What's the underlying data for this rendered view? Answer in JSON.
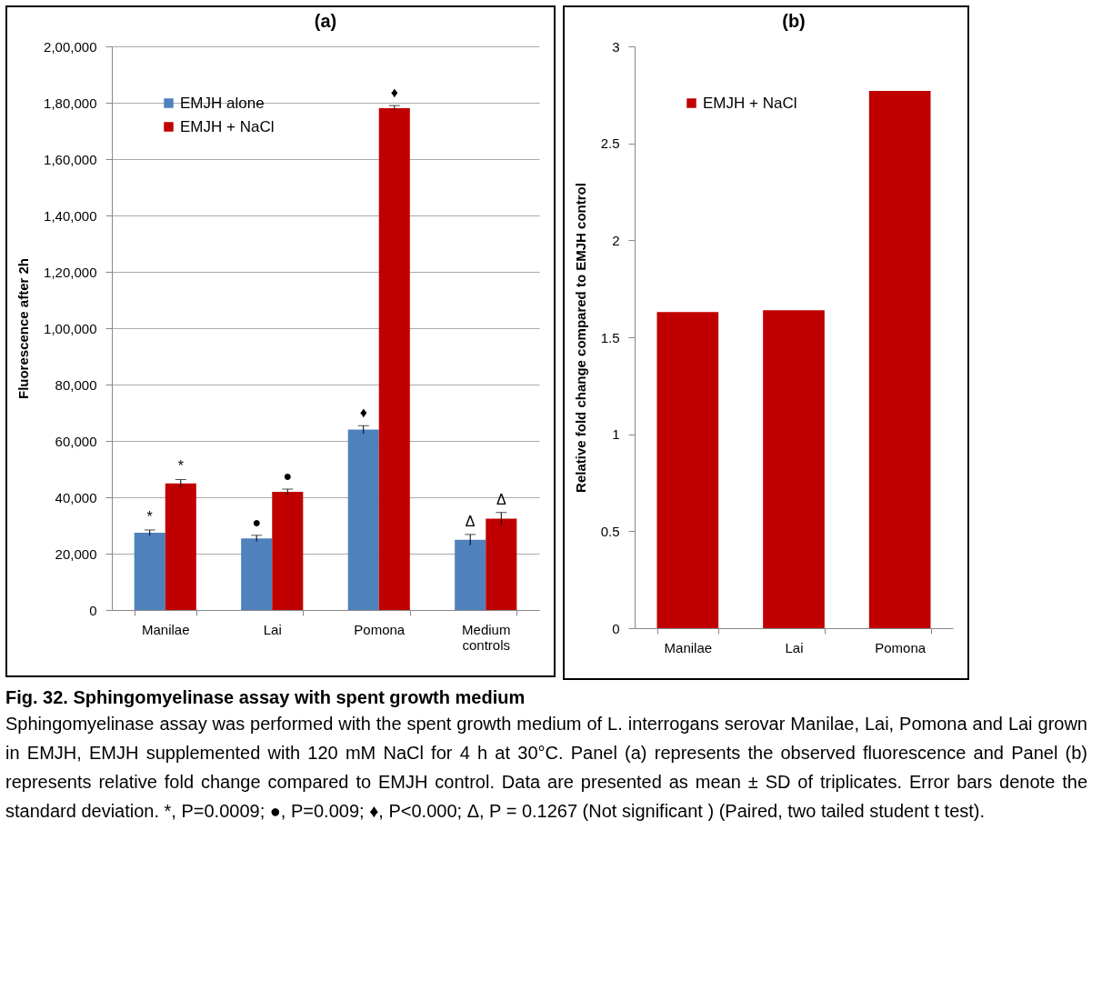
{
  "chart_data": [
    {
      "type": "bar",
      "title": "(a)",
      "ylabel": "Fluorescence  after 2h",
      "categories": [
        "Manilae",
        "Lai",
        "Pomona",
        "Medium controls"
      ],
      "series": [
        {
          "name": "EMJH alone",
          "color": "#4f81bd",
          "values": [
            27400,
            25400,
            64000,
            24900
          ],
          "errors": [
            1000,
            1100,
            1400,
            1900
          ]
        },
        {
          "name": "EMJH + NaCl",
          "color": "#c00000",
          "values": [
            44900,
            41900,
            178100,
            32400
          ],
          "errors": [
            1400,
            1000,
            900,
            2200
          ]
        }
      ],
      "ylim": [
        0,
        200000
      ],
      "yticks": [
        {
          "value": 0,
          "label": "0"
        },
        {
          "value": 20000,
          "label": "20,000"
        },
        {
          "value": 40000,
          "label": "40,000"
        },
        {
          "value": 60000,
          "label": "60,000"
        },
        {
          "value": 80000,
          "label": "80,000"
        },
        {
          "value": 100000,
          "label": "1,00,000"
        },
        {
          "value": 120000,
          "label": "1,20,000"
        },
        {
          "value": 140000,
          "label": "1,40,000"
        },
        {
          "value": 160000,
          "label": "1,60,000"
        },
        {
          "value": 180000,
          "label": "1,80,000"
        },
        {
          "value": 200000,
          "label": "2,00,000"
        }
      ],
      "grid": "y",
      "legend": "top left",
      "annotations": [
        {
          "text": "*",
          "x": "Manilae",
          "y": 27400
        },
        {
          "text": "*",
          "x": "Manilae",
          "y": 44900
        },
        {
          "text": "●",
          "x": "Lai",
          "y": 25400
        },
        {
          "text": "●",
          "x": "Lai",
          "y": 41900
        },
        {
          "text": "♦",
          "x": "Pomona",
          "y": 64000
        },
        {
          "text": "♦",
          "x": "Pomona",
          "y": 178100
        },
        {
          "text": "Δ",
          "x": "Medium controls",
          "y": 24900
        },
        {
          "text": "Δ",
          "x": "Medium controls",
          "y": 32400
        },
        "Fig. 32. Sphingomyelinase assay with spent growth medium",
        "Sphingomyelinase assay was performed with the spent growth medium of L. interrogans serovar Manilae, Lai, Pomona and Lai grown in EMJH, EMJH supplemented with 120 mM NaCl for 4 h at 30°C. Panel (a) represents the observed fluorescence and Panel (b) represents relative fold change compared to EMJH control.  Data are presented as mean ± SD of triplicates. Error bars denote the standard deviation. *, P=0.0009; ●, P=0.009; ♦, P<0.000; Δ, P = 0.1267 (Not significant )  (Paired, two tailed student t test)."
      ]
    },
    {
      "type": "bar",
      "title": "(b)",
      "ylabel": "Relative fold change compared to EMJH control",
      "categories": [
        "Manilae",
        "Lai",
        "Pomona"
      ],
      "series": [
        {
          "name": "EMJH + NaCl",
          "color": "#c00000",
          "values": [
            1.63,
            1.64,
            2.77
          ]
        }
      ],
      "ylim": [
        0,
        3
      ],
      "yticks": [
        0,
        0.5,
        1,
        1.5,
        2,
        2.5,
        3
      ],
      "grid": false,
      "legend": "top left"
    }
  ]
}
